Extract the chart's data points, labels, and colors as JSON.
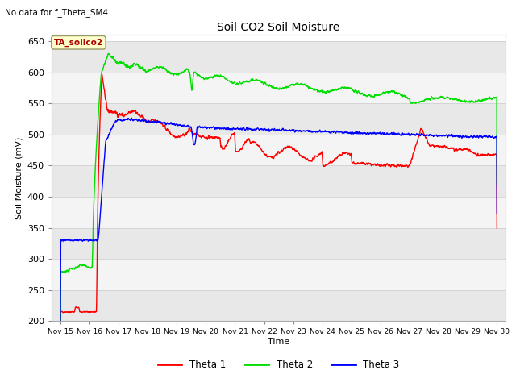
{
  "title": "Soil CO2 Soil Moisture",
  "subtitle": "No data for f_Theta_SM4",
  "ylabel": "Soil Moisture (mV)",
  "xlabel": "Time",
  "ylim": [
    200,
    660
  ],
  "yticks": [
    200,
    250,
    300,
    350,
    400,
    450,
    500,
    550,
    600,
    650
  ],
  "annotation": "TA_soilco2",
  "annotation_color": "#aa0000",
  "annotation_bg": "#ffffcc",
  "annotation_edge": "#999966",
  "fig_bg": "#ffffff",
  "band_colors": [
    "#e8e8e8",
    "#f4f4f4"
  ],
  "line_colors": {
    "theta1": "#ff0000",
    "theta2": "#00dd00",
    "theta3": "#0000ff"
  },
  "legend": [
    "Theta 1",
    "Theta 2",
    "Theta 3"
  ],
  "x_labels": [
    "Nov 15",
    "Nov 16",
    "Nov 17",
    "Nov 18",
    "Nov 19",
    "Nov 20",
    "Nov 21",
    "Nov 22",
    "Nov 23",
    "Nov 24",
    "Nov 25",
    "Nov 26",
    "Nov 27",
    "Nov 28",
    "Nov 29",
    "Nov 30"
  ]
}
